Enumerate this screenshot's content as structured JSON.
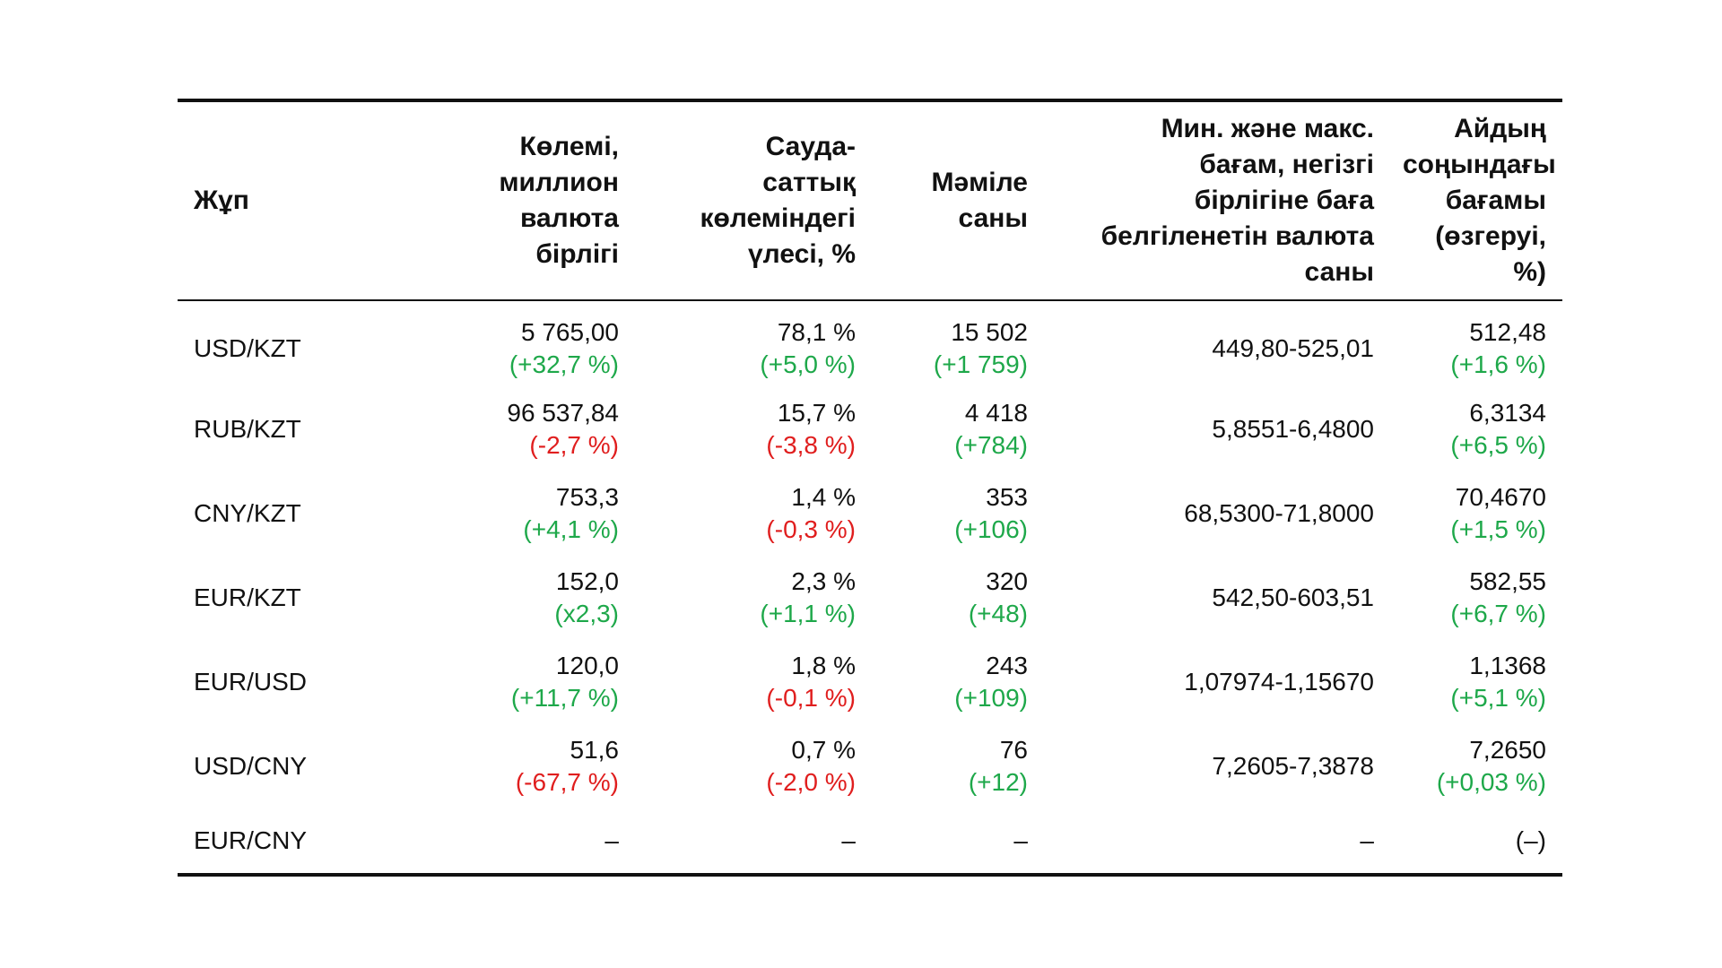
{
  "table": {
    "headers": {
      "pair": "Жұп",
      "volume": [
        "Көлемі,",
        "миллион",
        "валюта",
        "бірлігі"
      ],
      "share": [
        "Сауда-",
        "саттық",
        "көлеміндегі",
        "үлесі, %"
      ],
      "deals": [
        "Мәміле",
        "саны"
      ],
      "minmax": [
        "Мин. және макс.",
        "бағам, негізгі",
        "бірлігіне баға",
        "белгіленетін валюта",
        "саны"
      ],
      "rate": [
        "Айдың",
        "соңындағы",
        "бағамы",
        "(өзгеруі, %)"
      ]
    },
    "rows": [
      {
        "pair": "USD/KZT",
        "volume": "5 765,00",
        "volume_change": "(+32,7 %)",
        "volume_tone": "pos",
        "share": "78,1 %",
        "share_change": "(+5,0 %)",
        "share_tone": "pos",
        "deals": "15 502",
        "deals_change": "(+1 759)",
        "deals_tone": "pos",
        "minmax": "449,80-525,01",
        "rate": "512,48",
        "rate_change": "(+1,6 %)",
        "rate_tone": "pos"
      },
      {
        "pair": "RUB/KZT",
        "volume": "96 537,84",
        "volume_change": "(-2,7 %)",
        "volume_tone": "neg",
        "share": "15,7 %",
        "share_change": "(-3,8 %)",
        "share_tone": "neg",
        "deals": "4 418",
        "deals_change": "(+784)",
        "deals_tone": "pos",
        "minmax": "5,8551-6,4800",
        "rate": "6,3134",
        "rate_change": "(+6,5 %)",
        "rate_tone": "pos"
      },
      {
        "pair": "CNY/KZT",
        "volume": "753,3",
        "volume_change": "(+4,1 %)",
        "volume_tone": "pos",
        "share": "1,4 %",
        "share_change": "(-0,3 %)",
        "share_tone": "neg",
        "deals": "353",
        "deals_change": "(+106)",
        "deals_tone": "pos",
        "minmax": "68,5300-71,8000",
        "rate": "70,4670",
        "rate_change": "(+1,5 %)",
        "rate_tone": "pos"
      },
      {
        "pair": "EUR/KZT",
        "volume": "152,0",
        "volume_change": "(x2,3)",
        "volume_tone": "pos",
        "share": "2,3 %",
        "share_change": "(+1,1 %)",
        "share_tone": "pos",
        "deals": "320",
        "deals_change": "(+48)",
        "deals_tone": "pos",
        "minmax": "542,50-603,51",
        "rate": "582,55",
        "rate_change": "(+6,7 %)",
        "rate_tone": "pos"
      },
      {
        "pair": "EUR/USD",
        "volume": "120,0",
        "volume_change": "(+11,7 %)",
        "volume_tone": "pos",
        "share": "1,8 %",
        "share_change": "(-0,1 %)",
        "share_tone": "neg",
        "deals": "243",
        "deals_change": "(+109)",
        "deals_tone": "pos",
        "minmax": "1,07974-1,15670",
        "rate": "1,1368",
        "rate_change": "(+5,1 %)",
        "rate_tone": "pos"
      },
      {
        "pair": "USD/CNY",
        "volume": "51,6",
        "volume_change": "(-67,7 %)",
        "volume_tone": "neg",
        "share": "0,7 %",
        "share_change": "(-2,0 %)",
        "share_tone": "neg",
        "deals": "76",
        "deals_change": "(+12)",
        "deals_tone": "pos",
        "minmax": "7,2605-7,3878",
        "rate": "7,2650",
        "rate_change": "(+0,03 %)",
        "rate_tone": "pos"
      },
      {
        "pair": "EUR/CNY",
        "volume": "–",
        "share": "–",
        "deals": "–",
        "minmax": "–",
        "rate": "(–)"
      }
    ],
    "colors": {
      "positive": "#1ea84a",
      "negative": "#e01e1e",
      "text": "#111111",
      "rule": "#111111"
    }
  }
}
